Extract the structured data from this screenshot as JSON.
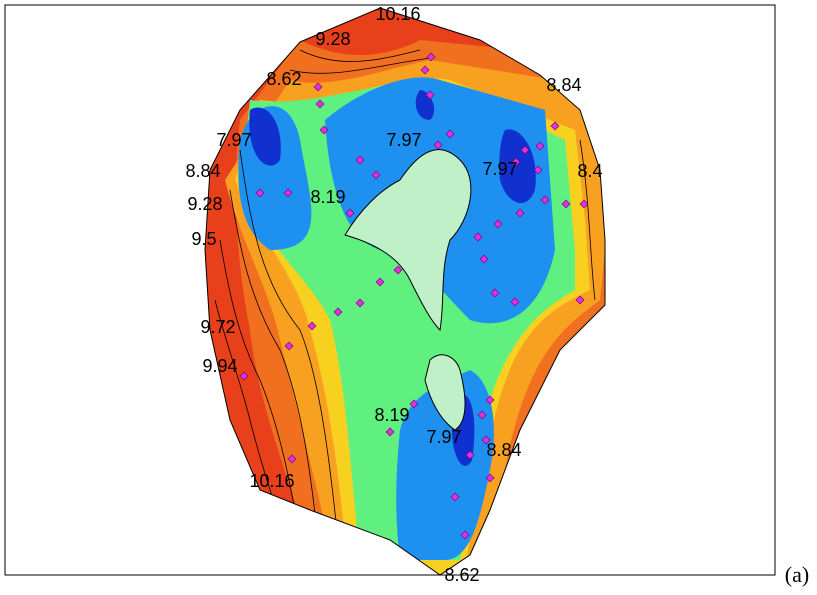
{
  "contour_labels": [
    "10.16",
    "9.28",
    "8.62",
    "8.84",
    "7.97",
    "7.97",
    "7.97",
    "8.84",
    "8.4",
    "9.28",
    "8.19",
    "9.5",
    "9.72",
    "9.94",
    "8.19",
    "7.97",
    "8.84",
    "10.16",
    "8.62"
  ],
  "panel_label": "(a)"
}
